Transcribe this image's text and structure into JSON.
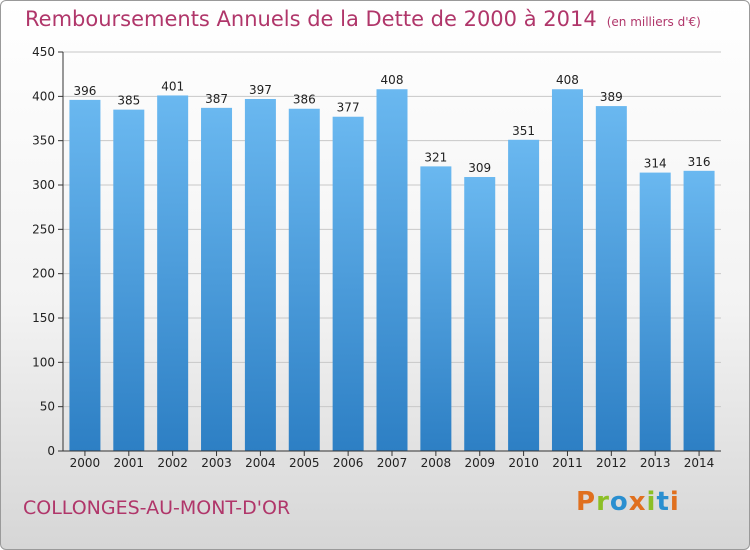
{
  "header": {
    "title": "Remboursements Annuels de la Dette de 2000 à 2014",
    "unit": "(en milliers d'€)"
  },
  "footer": {
    "place": "COLLONGES-AU-MONT-D'OR",
    "logo_text": "Proxiti",
    "logo_colors": [
      "#e0701f",
      "#8cbf26",
      "#2a8fd0",
      "#e0701f",
      "#8cbf26",
      "#2a8fd0",
      "#e0701f"
    ]
  },
  "colors": {
    "title": "#b0366a",
    "bar_top": "#6ab8f0",
    "bar_bottom": "#2d7fc4",
    "grid": "#c8c8c8",
    "axis": "#333333"
  },
  "chart_data": {
    "type": "bar",
    "title": "Remboursements Annuels de la Dette de 2000 à 2014",
    "xlabel": "",
    "ylabel": "",
    "categories": [
      "2000",
      "2001",
      "2002",
      "2003",
      "2004",
      "2005",
      "2006",
      "2007",
      "2008",
      "2009",
      "2010",
      "2011",
      "2012",
      "2013",
      "2014"
    ],
    "values": [
      396,
      385,
      401,
      387,
      397,
      386,
      377,
      408,
      321,
      309,
      351,
      408,
      389,
      314,
      316
    ],
    "ylim": [
      0,
      450
    ],
    "yticks": [
      0,
      50,
      100,
      150,
      200,
      250,
      300,
      350,
      400,
      450
    ],
    "grid": true
  }
}
